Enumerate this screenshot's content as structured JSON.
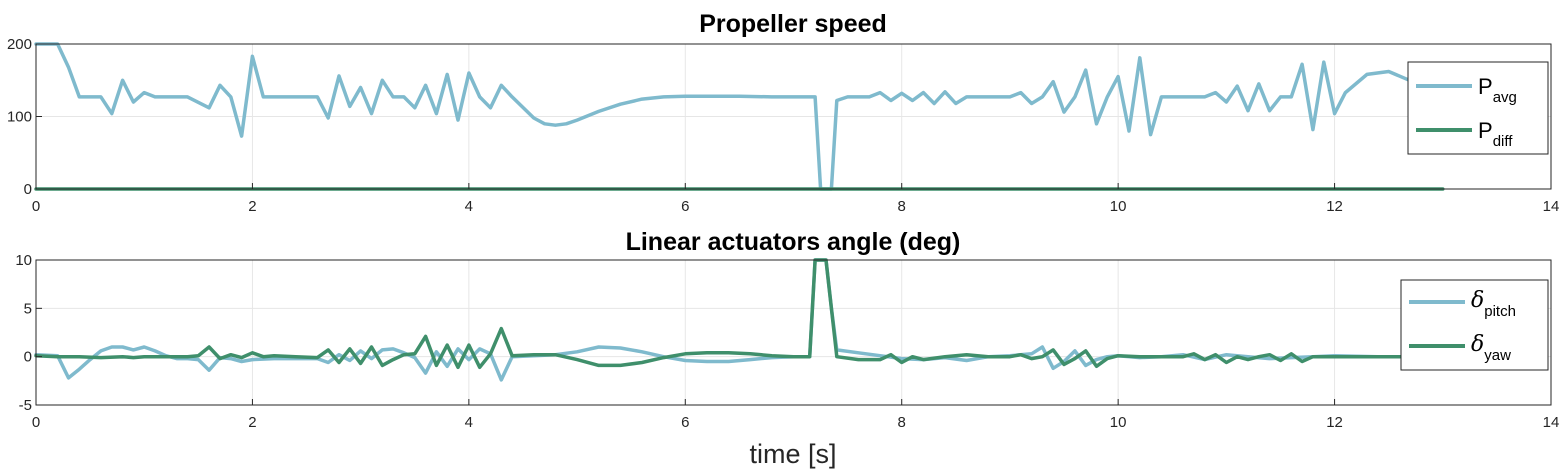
{
  "chart_data": [
    {
      "type": "line",
      "title": "Propeller speed",
      "xlabel": "",
      "ylabel": "",
      "xlim": [
        0,
        14
      ],
      "ylim": [
        0,
        200
      ],
      "xticks": [
        "0",
        "2",
        "4",
        "6",
        "8",
        "10",
        "12",
        "14"
      ],
      "yticks": [
        "0",
        "100",
        "200"
      ],
      "grid": true,
      "legend_position": "right",
      "colors": {
        "avg": "#7fbacd",
        "diff": "#3f8f6b"
      },
      "legend": [
        {
          "main": "P",
          "sub": "avg"
        },
        {
          "main": "P",
          "sub": "diff"
        }
      ],
      "series": [
        {
          "name": "Pavg",
          "x": [
            0,
            0.2,
            0.3,
            0.4,
            0.6,
            0.7,
            0.8,
            0.9,
            1.0,
            1.1,
            1.2,
            1.4,
            1.6,
            1.7,
            1.8,
            1.9,
            2.0,
            2.1,
            2.2,
            2.4,
            2.6,
            2.7,
            2.8,
            2.9,
            3.0,
            3.1,
            3.2,
            3.3,
            3.4,
            3.5,
            3.6,
            3.7,
            3.8,
            3.9,
            4.0,
            4.1,
            4.2,
            4.3,
            4.4,
            4.6,
            4.7,
            4.8,
            4.9,
            5.0,
            5.2,
            5.4,
            5.6,
            5.8,
            6.0,
            6.2,
            6.5,
            6.8,
            7.0,
            7.2,
            7.25,
            7.3,
            7.35,
            7.4,
            7.5,
            7.7,
            7.8,
            7.9,
            8.0,
            8.1,
            8.2,
            8.3,
            8.4,
            8.5,
            8.6,
            8.8,
            9.0,
            9.1,
            9.2,
            9.3,
            9.4,
            9.5,
            9.6,
            9.7,
            9.8,
            9.9,
            10.0,
            10.1,
            10.2,
            10.3,
            10.4,
            10.6,
            10.8,
            10.9,
            11.0,
            11.1,
            11.2,
            11.3,
            11.4,
            11.5,
            11.6,
            11.7,
            11.8,
            11.9,
            12.0,
            12.1,
            12.3,
            12.5,
            12.8,
            13.0
          ],
          "y": [
            200,
            200,
            168,
            127,
            127,
            104,
            150,
            120,
            133,
            127,
            127,
            127,
            112,
            143,
            127,
            73,
            183,
            127,
            127,
            127,
            127,
            98,
            156,
            114,
            140,
            104,
            150,
            127,
            127,
            112,
            143,
            104,
            158,
            95,
            160,
            127,
            112,
            143,
            127,
            98,
            90,
            88,
            90,
            95,
            107,
            117,
            124,
            127,
            128,
            128,
            128,
            127,
            127,
            127,
            0,
            0,
            0,
            122,
            127,
            127,
            133,
            122,
            132,
            122,
            133,
            118,
            134,
            118,
            127,
            127,
            127,
            133,
            118,
            127,
            148,
            106,
            127,
            164,
            90,
            127,
            155,
            80,
            181,
            75,
            127,
            127,
            127,
            133,
            120,
            142,
            108,
            145,
            108,
            127,
            127,
            172,
            82,
            175,
            104,
            133,
            158,
            162,
            143,
            131
          ]
        },
        {
          "name": "Pdiff",
          "x": [
            0,
            13.0
          ],
          "y": [
            0,
            0
          ]
        }
      ]
    },
    {
      "type": "line",
      "title": "Linear actuators angle (deg)",
      "xlabel": "time [s]",
      "ylabel": "",
      "xlim": [
        0,
        14
      ],
      "ylim": [
        -5,
        10
      ],
      "xticks": [
        "0",
        "2",
        "4",
        "6",
        "8",
        "10",
        "12",
        "14"
      ],
      "yticks": [
        "-5",
        "0",
        "5",
        "10"
      ],
      "grid": true,
      "legend_position": "right",
      "colors": {
        "pitch": "#7fbacd",
        "yaw": "#3f8f6b"
      },
      "legend": [
        {
          "main": "δ",
          "sub": "pitch"
        },
        {
          "main": "δ",
          "sub": "yaw"
        }
      ],
      "series": [
        {
          "name": "δpitch",
          "x": [
            0,
            0.2,
            0.3,
            0.4,
            0.5,
            0.6,
            0.7,
            0.8,
            0.9,
            1.0,
            1.1,
            1.2,
            1.3,
            1.4,
            1.5,
            1.6,
            1.7,
            1.8,
            1.9,
            2.0,
            2.2,
            2.4,
            2.6,
            2.7,
            2.8,
            2.9,
            3.0,
            3.1,
            3.2,
            3.3,
            3.4,
            3.5,
            3.6,
            3.7,
            3.8,
            3.9,
            4.0,
            4.1,
            4.2,
            4.3,
            4.4,
            4.6,
            4.8,
            5.0,
            5.2,
            5.4,
            5.6,
            5.8,
            6.0,
            6.2,
            6.4,
            6.6,
            6.8,
            7.0,
            7.15,
            7.2,
            7.3,
            7.35,
            7.4,
            7.6,
            7.8,
            8.0,
            8.2,
            8.4,
            8.6,
            8.8,
            9.0,
            9.2,
            9.3,
            9.4,
            9.5,
            9.6,
            9.7,
            9.8,
            9.9,
            10.0,
            10.2,
            10.4,
            10.6,
            10.8,
            11.0,
            11.2,
            11.4,
            11.6,
            11.8,
            12.0,
            12.4,
            12.8,
            13.0
          ],
          "y": [
            0.2,
            0.1,
            -2.2,
            -1.3,
            -0.3,
            0.6,
            1.0,
            1.0,
            0.7,
            1.0,
            0.6,
            0.1,
            -0.2,
            -0.2,
            -0.3,
            -1.4,
            -0.1,
            -0.2,
            -0.5,
            -0.3,
            -0.2,
            -0.2,
            -0.2,
            -0.6,
            0.2,
            -0.4,
            0.6,
            -0.2,
            0.7,
            0.8,
            0.4,
            -0.1,
            -1.7,
            0.5,
            -1.0,
            0.8,
            -0.3,
            0.8,
            0.3,
            -2.4,
            0.0,
            0.1,
            0.2,
            0.5,
            1.0,
            0.9,
            0.5,
            0.0,
            -0.4,
            -0.5,
            -0.5,
            -0.3,
            -0.1,
            0.0,
            0.0,
            10.0,
            10.0,
            5.0,
            0.7,
            0.4,
            0.1,
            -0.2,
            -0.3,
            -0.1,
            -0.4,
            0.0,
            0.1,
            0.3,
            1.0,
            -1.2,
            -0.5,
            0.6,
            -0.9,
            -0.3,
            0.0,
            0.1,
            -0.1,
            0.0,
            0.2,
            -0.3,
            0.2,
            0.0,
            -0.2,
            -0.1,
            0.0,
            0.1,
            0.0,
            0.0,
            0.0
          ]
        },
        {
          "name": "δyaw",
          "x": [
            0,
            0.2,
            0.4,
            0.6,
            0.8,
            0.9,
            1.0,
            1.2,
            1.4,
            1.5,
            1.6,
            1.7,
            1.8,
            1.9,
            2.0,
            2.1,
            2.2,
            2.4,
            2.6,
            2.7,
            2.8,
            2.9,
            3.0,
            3.1,
            3.2,
            3.3,
            3.4,
            3.5,
            3.6,
            3.7,
            3.8,
            3.9,
            4.0,
            4.1,
            4.2,
            4.3,
            4.4,
            4.6,
            4.8,
            5.0,
            5.2,
            5.4,
            5.6,
            5.8,
            6.0,
            6.2,
            6.4,
            6.6,
            6.8,
            7.0,
            7.15,
            7.2,
            7.3,
            7.35,
            7.4,
            7.6,
            7.8,
            7.9,
            8.0,
            8.1,
            8.2,
            8.4,
            8.6,
            8.8,
            9.0,
            9.1,
            9.2,
            9.3,
            9.4,
            9.5,
            9.6,
            9.7,
            9.8,
            9.9,
            10.0,
            10.2,
            10.4,
            10.6,
            10.7,
            10.8,
            10.9,
            11.0,
            11.1,
            11.2,
            11.3,
            11.4,
            11.5,
            11.6,
            11.7,
            11.8,
            11.9,
            12.0,
            12.4,
            12.8,
            13.0
          ],
          "y": [
            0.1,
            0.0,
            0.0,
            -0.1,
            0.0,
            -0.1,
            0.0,
            0.0,
            0.0,
            0.1,
            1.0,
            -0.2,
            0.2,
            -0.1,
            0.4,
            0.0,
            0.1,
            0.0,
            -0.1,
            0.7,
            -0.6,
            0.8,
            -0.7,
            1.0,
            -0.9,
            -0.3,
            0.2,
            0.3,
            2.1,
            -0.9,
            1.2,
            -1.1,
            1.2,
            -1.1,
            0.3,
            2.9,
            0.1,
            0.2,
            0.2,
            -0.3,
            -0.9,
            -0.9,
            -0.6,
            -0.1,
            0.3,
            0.4,
            0.4,
            0.3,
            0.1,
            0.0,
            0.0,
            10.0,
            10.0,
            5.0,
            0.0,
            -0.3,
            -0.3,
            0.2,
            -0.6,
            0.0,
            -0.3,
            0.0,
            0.2,
            0.0,
            0.0,
            0.2,
            -0.2,
            0.0,
            0.7,
            -0.8,
            -0.2,
            0.6,
            -1.0,
            -0.2,
            0.1,
            0.0,
            0.0,
            0.0,
            0.3,
            -0.3,
            0.2,
            -0.6,
            0.0,
            -0.3,
            0.0,
            0.2,
            -0.4,
            0.3,
            -0.5,
            0.0,
            0.0,
            0.0,
            0.0,
            0.0,
            0.0
          ]
        }
      ]
    }
  ]
}
